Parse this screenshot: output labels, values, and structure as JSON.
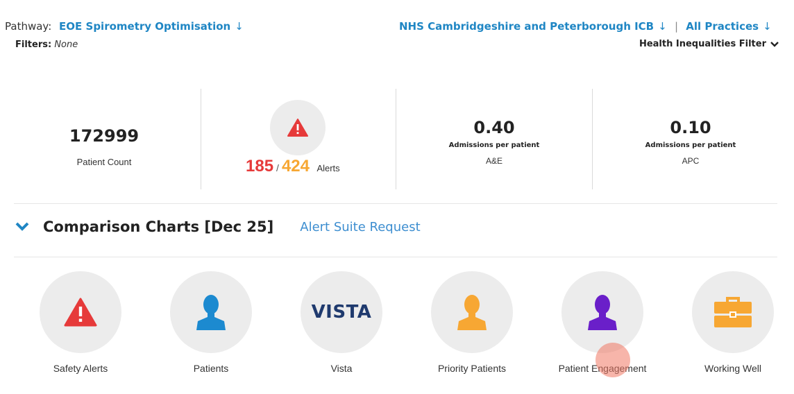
{
  "header": {
    "pathway_label": "Pathway:",
    "pathway_value": "EOE Spirometry Optimisation",
    "icb": "NHS Cambridgeshire and Peterborough ICB",
    "separator": "|",
    "practices": "All Practices",
    "dropdown_arrow": "↓",
    "filters_label": "Filters:",
    "filters_value": "None",
    "health_filter": "Health Inequalities Filter"
  },
  "stats": {
    "patient_count": {
      "value": "172999",
      "label": "Patient Count"
    },
    "alerts": {
      "red": "185",
      "slash": "/",
      "orange": "424",
      "label": "Alerts"
    },
    "ae": {
      "value": "0.40",
      "sublabel": "Admissions per patient",
      "label": "A&E"
    },
    "apc": {
      "value": "0.10",
      "sublabel": "Admissions per patient",
      "label": "APC"
    }
  },
  "comparison": {
    "title": "Comparison Charts [Dec 25]",
    "link": "Alert Suite Request"
  },
  "tiles": [
    {
      "label": "Safety Alerts",
      "icon": "warning-icon"
    },
    {
      "label": "Patients",
      "icon": "person-icon"
    },
    {
      "label": "Vista",
      "icon": "vista-logo",
      "logo_text": "VISTA"
    },
    {
      "label": "Priority Patients",
      "icon": "person-icon"
    },
    {
      "label": "Patient Engagement",
      "icon": "person-icon"
    },
    {
      "label": "Working Well",
      "icon": "briefcase-icon"
    }
  ],
  "colors": {
    "link_blue": "#1f86c4",
    "alert_red": "#e63a3a",
    "alert_orange": "#f7a733",
    "patients_blue": "#1c8ad0",
    "priority_orange": "#f7a733",
    "engagement_purple": "#6a1fc9",
    "vista_navy": "#1f3a6e"
  }
}
